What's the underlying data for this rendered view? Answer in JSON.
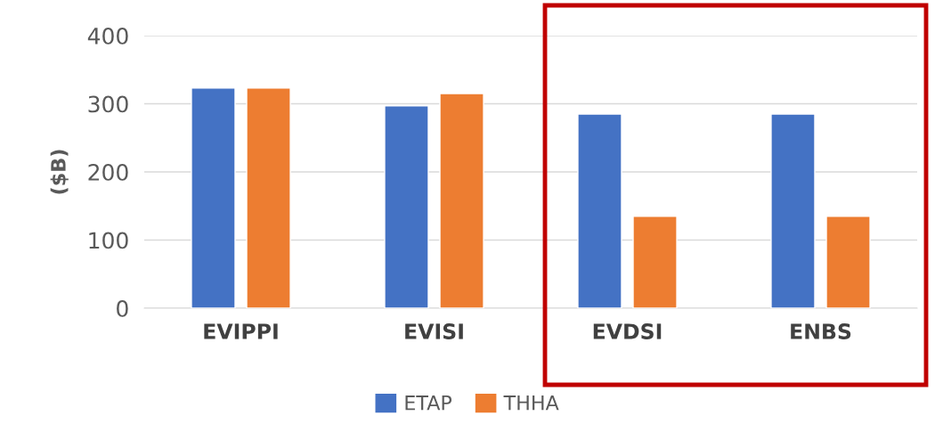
{
  "chart_data": {
    "type": "bar",
    "ylabel": "($B)",
    "categories": [
      "EVIPPI",
      "EVISI",
      "EVDSI",
      "ENBS"
    ],
    "series": [
      {
        "name": "ETAP",
        "color": "#4472c4",
        "values": [
          323,
          297,
          285,
          285
        ]
      },
      {
        "name": "THHA",
        "color": "#ed7d31",
        "values": [
          323,
          315,
          135,
          135
        ]
      }
    ],
    "ylim": [
      0,
      400
    ],
    "yticks": [
      0,
      100,
      200,
      300,
      400
    ],
    "grid": "y",
    "legend": "bottom"
  }
}
